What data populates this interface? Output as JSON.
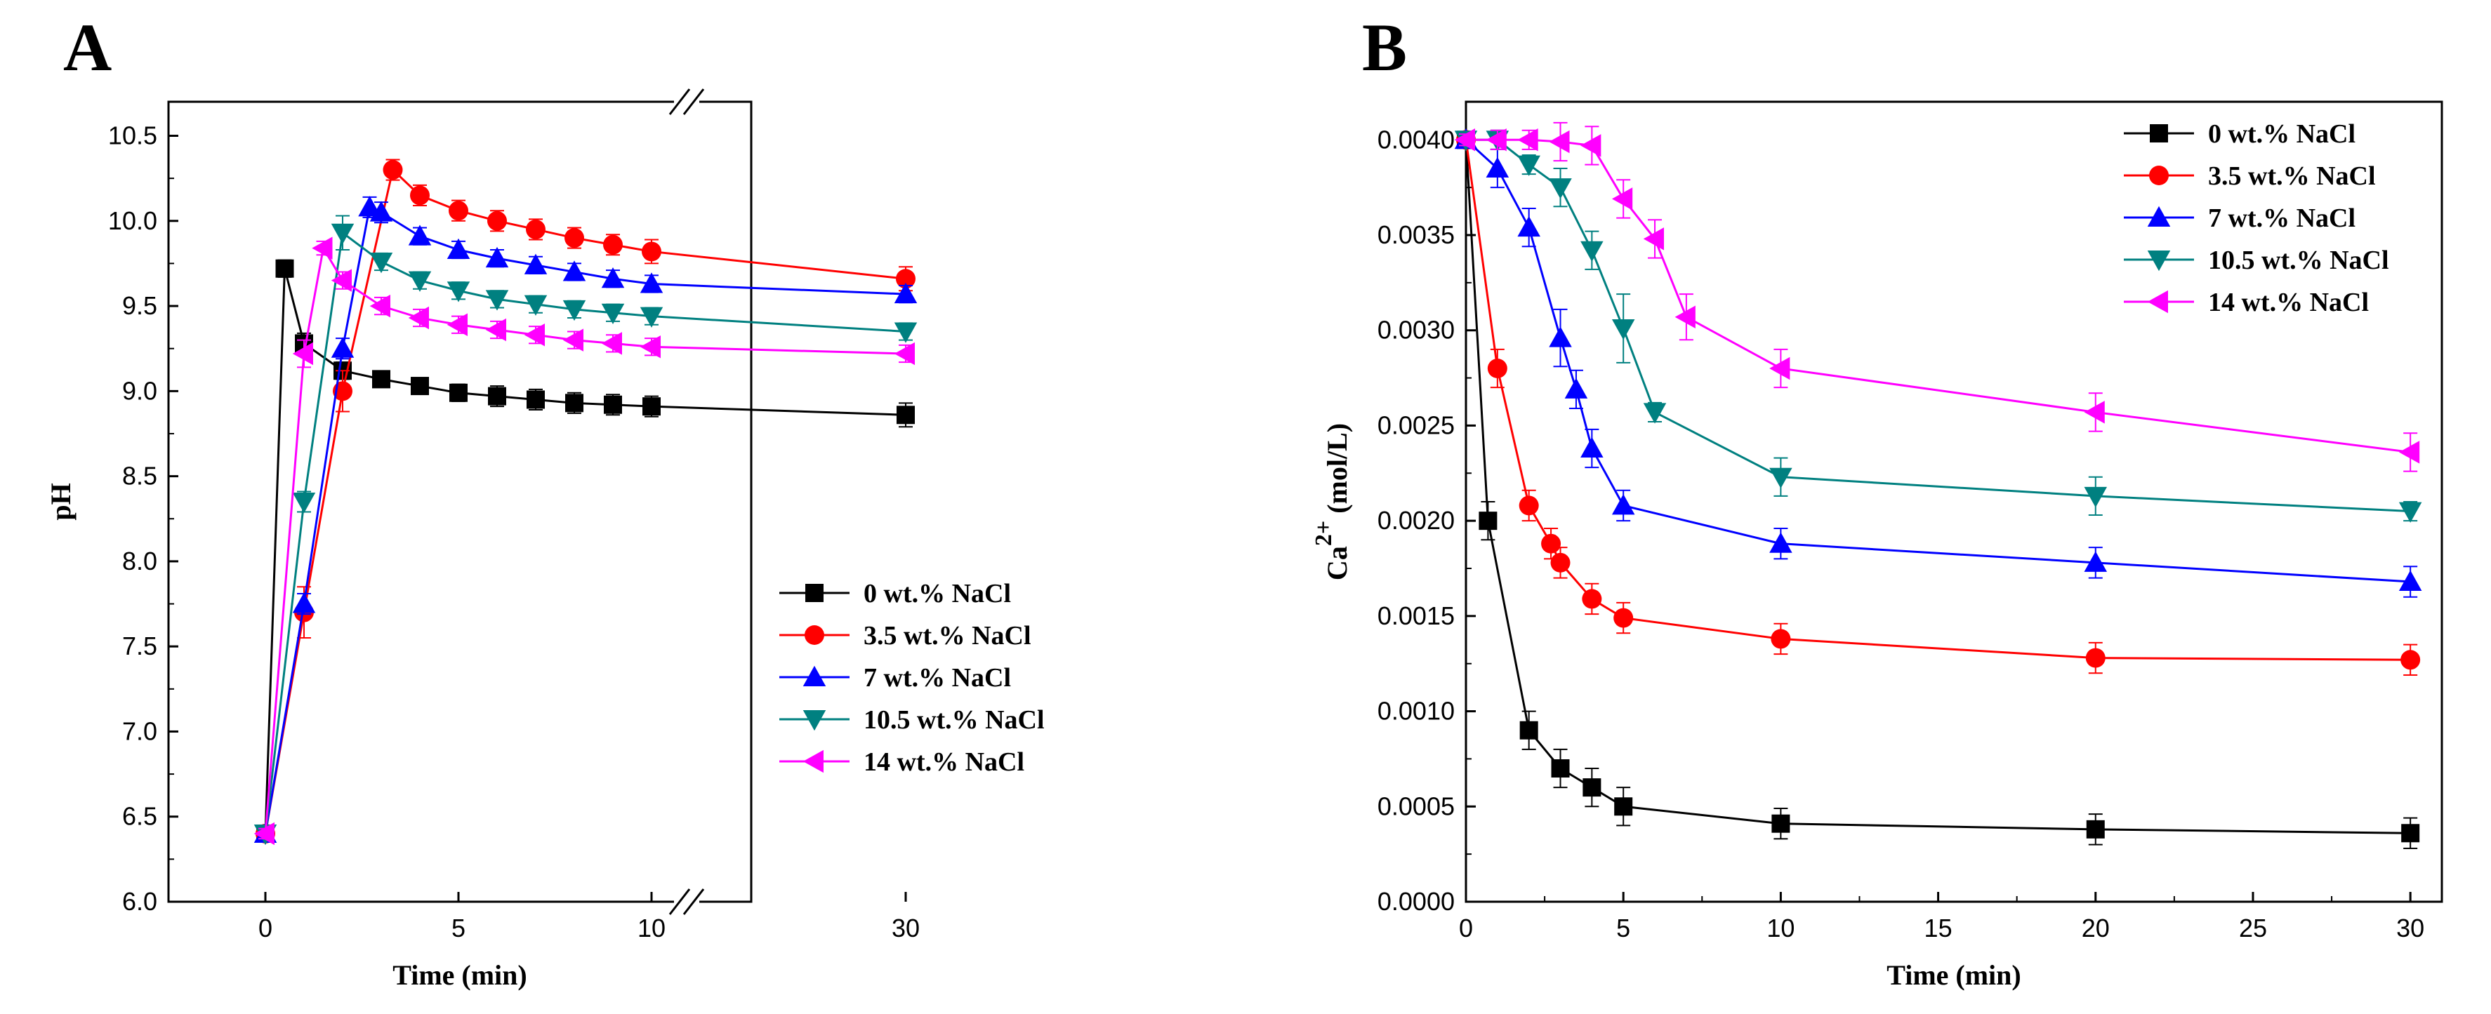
{
  "chart_data": [
    {
      "panel": "A",
      "type": "line",
      "title": "",
      "xlabel": "Time (min)",
      "ylabel": "pH",
      "axis_break": [
        10,
        30
      ],
      "xlim": [
        -3,
        42
      ],
      "ylim": [
        6.0,
        10.7
      ],
      "xticks": [
        0,
        5,
        10,
        30
      ],
      "xtick_labels": [
        "0",
        "5",
        "10",
        "30"
      ],
      "yticks": [
        6.0,
        6.5,
        7.0,
        7.5,
        8.0,
        8.5,
        9.0,
        9.5,
        10.0,
        10.5
      ],
      "ytick_labels": [
        "6.0",
        "6.5",
        "7.0",
        "7.5",
        "8.0",
        "8.5",
        "9.0",
        "9.5",
        "10.0",
        "10.5"
      ],
      "legend_position": "lower-right",
      "series": [
        {
          "name": "0 wt.% NaCl",
          "color": "#000000",
          "marker": "square",
          "points": [
            [
              0,
              6.4
            ],
            [
              0.5,
              9.72
            ],
            [
              1,
              9.28
            ],
            [
              2,
              9.12
            ],
            [
              3,
              9.07
            ],
            [
              4,
              9.03
            ],
            [
              5,
              8.99
            ],
            [
              6,
              8.97
            ],
            [
              7,
              8.95
            ],
            [
              8,
              8.93
            ],
            [
              9,
              8.92
            ],
            [
              10,
              8.91
            ],
            [
              30,
              8.86
            ]
          ],
          "err": [
            0.03,
            0.05,
            0.06,
            0.05,
            0.04,
            0.04,
            0.05,
            0.06,
            0.06,
            0.06,
            0.06,
            0.06,
            0.07
          ]
        },
        {
          "name": "3.5 wt.% NaCl",
          "color": "#ff0000",
          "marker": "circle",
          "points": [
            [
              0,
              6.4
            ],
            [
              1,
              7.7
            ],
            [
              2,
              9.0
            ],
            [
              3.3,
              10.3
            ],
            [
              4,
              10.15
            ],
            [
              5,
              10.06
            ],
            [
              6,
              10.0
            ],
            [
              7,
              9.95
            ],
            [
              8,
              9.9
            ],
            [
              9,
              9.86
            ],
            [
              10,
              9.82
            ],
            [
              30,
              9.66
            ]
          ],
          "err": [
            0.03,
            0.15,
            0.12,
            0.06,
            0.06,
            0.06,
            0.06,
            0.06,
            0.06,
            0.06,
            0.07,
            0.07
          ]
        },
        {
          "name": "7 wt.% NaCl",
          "color": "#0000ff",
          "marker": "triangle-up",
          "points": [
            [
              0,
              6.4
            ],
            [
              1,
              7.75
            ],
            [
              2,
              9.25
            ],
            [
              2.7,
              10.08
            ],
            [
              3,
              10.05
            ],
            [
              4,
              9.91
            ],
            [
              5,
              9.83
            ],
            [
              6,
              9.78
            ],
            [
              7,
              9.74
            ],
            [
              8,
              9.7
            ],
            [
              9,
              9.66
            ],
            [
              10,
              9.63
            ],
            [
              30,
              9.57
            ]
          ],
          "err": [
            0.03,
            0.06,
            0.06,
            0.06,
            0.06,
            0.05,
            0.05,
            0.05,
            0.05,
            0.05,
            0.05,
            0.05,
            0.05
          ]
        },
        {
          "name": "10.5 wt.% NaCl",
          "color": "#008080",
          "marker": "triangle-down",
          "points": [
            [
              0,
              6.4
            ],
            [
              1,
              8.35
            ],
            [
              2,
              9.93
            ],
            [
              3,
              9.76
            ],
            [
              4,
              9.65
            ],
            [
              5,
              9.59
            ],
            [
              6,
              9.54
            ],
            [
              7,
              9.51
            ],
            [
              8,
              9.48
            ],
            [
              9,
              9.46
            ],
            [
              10,
              9.44
            ],
            [
              30,
              9.35
            ]
          ],
          "err": [
            0.03,
            0.06,
            0.1,
            0.05,
            0.05,
            0.05,
            0.05,
            0.05,
            0.05,
            0.05,
            0.05,
            0.05
          ]
        },
        {
          "name": "14 wt.% NaCl",
          "color": "#ff00ff",
          "marker": "triangle-left",
          "points": [
            [
              0,
              6.4
            ],
            [
              1,
              9.22
            ],
            [
              1.5,
              9.84
            ],
            [
              2,
              9.65
            ],
            [
              3,
              9.5
            ],
            [
              4,
              9.43
            ],
            [
              5,
              9.39
            ],
            [
              6,
              9.36
            ],
            [
              7,
              9.33
            ],
            [
              8,
              9.3
            ],
            [
              9,
              9.28
            ],
            [
              10,
              9.26
            ],
            [
              30,
              9.22
            ]
          ],
          "err": [
            0.03,
            0.08,
            0.04,
            0.05,
            0.05,
            0.05,
            0.05,
            0.05,
            0.05,
            0.05,
            0.05,
            0.05,
            0.05
          ]
        }
      ]
    },
    {
      "panel": "B",
      "type": "line",
      "title": "",
      "xlabel": "Time (min)",
      "ylabel": "Ca2+ (mol/L)",
      "ylabel_base": "Ca",
      "ylabel_sup": "2+",
      "ylabel_rest": " (mol/L)",
      "xlim": [
        0,
        31
      ],
      "ylim": [
        0,
        0.0042
      ],
      "xticks": [
        0,
        5,
        10,
        15,
        20,
        25,
        30
      ],
      "xtick_labels": [
        "0",
        "5",
        "10",
        "15",
        "20",
        "25",
        "30"
      ],
      "yticks": [
        0,
        0.0005,
        0.001,
        0.0015,
        0.002,
        0.0025,
        0.003,
        0.0035,
        0.004
      ],
      "ytick_labels": [
        "0.0000",
        "0.0005",
        "0.0010",
        "0.0015",
        "0.0020",
        "0.0025",
        "0.0030",
        "0.0035",
        "0.0040"
      ],
      "legend_position": "top-right",
      "series": [
        {
          "name": "0 wt.% NaCl",
          "color": "#000000",
          "marker": "square",
          "points": [
            [
              0,
              0.004
            ],
            [
              0.7,
              0.002
            ],
            [
              2,
              0.0009
            ],
            [
              3,
              0.0007
            ],
            [
              4,
              0.0006
            ],
            [
              5,
              0.0005
            ],
            [
              10,
              0.00041
            ],
            [
              20,
              0.00038
            ],
            [
              30,
              0.00036
            ]
          ],
          "err": [
            3e-05,
            0.0001,
            0.0001,
            0.0001,
            0.0001,
            0.0001,
            8e-05,
            8e-05,
            8e-05
          ]
        },
        {
          "name": "3.5 wt.% NaCl",
          "color": "#ff0000",
          "marker": "circle",
          "points": [
            [
              0,
              0.004
            ],
            [
              1,
              0.0028
            ],
            [
              2,
              0.00208
            ],
            [
              2.7,
              0.00188
            ],
            [
              3,
              0.00178
            ],
            [
              4,
              0.00159
            ],
            [
              5,
              0.00149
            ],
            [
              10,
              0.00138
            ],
            [
              20,
              0.00128
            ],
            [
              30,
              0.00127
            ]
          ],
          "err": [
            3e-05,
            0.0001,
            8e-05,
            8e-05,
            8e-05,
            8e-05,
            8e-05,
            8e-05,
            8e-05,
            8e-05
          ]
        },
        {
          "name": "7 wt.% NaCl",
          "color": "#0000ff",
          "marker": "triangle-up",
          "points": [
            [
              0,
              0.004
            ],
            [
              1,
              0.00385
            ],
            [
              2,
              0.00354
            ],
            [
              3,
              0.00296
            ],
            [
              3.5,
              0.00269
            ],
            [
              4,
              0.00238
            ],
            [
              5,
              0.00208
            ],
            [
              10,
              0.00188
            ],
            [
              20,
              0.00178
            ],
            [
              30,
              0.00168
            ]
          ],
          "err": [
            3e-05,
            0.0001,
            0.0001,
            0.00015,
            0.0001,
            0.0001,
            8e-05,
            8e-05,
            8e-05,
            8e-05
          ]
        },
        {
          "name": "10.5 wt.% NaCl",
          "color": "#008080",
          "marker": "triangle-down",
          "points": [
            [
              0,
              0.004
            ],
            [
              1,
              0.004
            ],
            [
              2,
              0.00387
            ],
            [
              3,
              0.00375
            ],
            [
              4,
              0.00342
            ],
            [
              5,
              0.00301
            ],
            [
              6,
              0.00257
            ],
            [
              10,
              0.00223
            ],
            [
              20,
              0.00213
            ],
            [
              30,
              0.00205
            ]
          ],
          "err": [
            3e-05,
            5e-05,
            5e-05,
            0.0001,
            0.0001,
            0.00018,
            5e-05,
            0.0001,
            0.0001,
            5e-05
          ]
        },
        {
          "name": "14 wt.% NaCl",
          "color": "#ff00ff",
          "marker": "triangle-left",
          "points": [
            [
              0,
              0.004
            ],
            [
              1,
              0.004
            ],
            [
              2,
              0.004
            ],
            [
              3,
              0.00399
            ],
            [
              4,
              0.00397
            ],
            [
              5,
              0.00369
            ],
            [
              6,
              0.00348
            ],
            [
              7,
              0.00307
            ],
            [
              10,
              0.0028
            ],
            [
              20,
              0.00257
            ],
            [
              30,
              0.00236
            ]
          ],
          "err": [
            3e-05,
            5e-05,
            5e-05,
            0.0001,
            0.0001,
            0.0001,
            0.0001,
            0.00012,
            0.0001,
            0.0001,
            0.0001
          ]
        }
      ]
    }
  ],
  "panel_labels": [
    "A",
    "B"
  ]
}
